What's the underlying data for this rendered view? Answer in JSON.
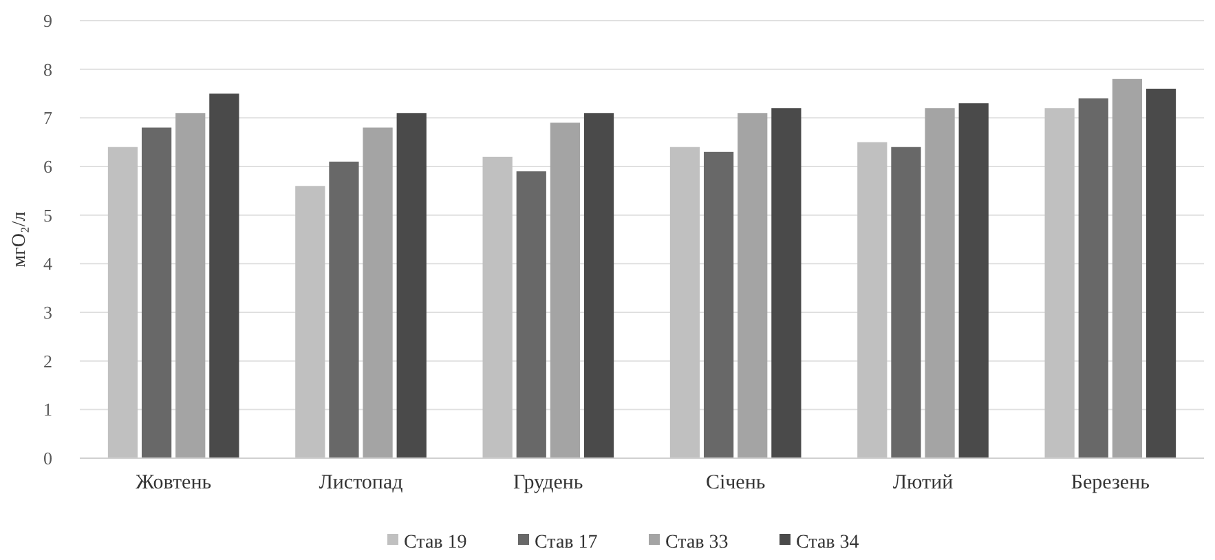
{
  "chart_data": {
    "type": "bar",
    "ylabel": "мгO₂/л",
    "categories": [
      "Жовтень",
      "Листопад",
      "Грудень",
      "Січень",
      "Лютий",
      "Березень"
    ],
    "series": [
      {
        "name": "Став 19",
        "color": "#c0c0c0",
        "values": [
          6.4,
          5.6,
          6.2,
          6.4,
          6.5,
          7.2
        ]
      },
      {
        "name": "Став 17",
        "color": "#686868",
        "values": [
          6.8,
          6.1,
          5.9,
          6.3,
          6.4,
          7.4
        ]
      },
      {
        "name": "Став 33",
        "color": "#a4a4a4",
        "values": [
          7.1,
          6.8,
          6.9,
          7.1,
          7.2,
          7.8
        ]
      },
      {
        "name": "Став 34",
        "color": "#4a4a4a",
        "values": [
          7.5,
          7.1,
          7.1,
          7.2,
          7.3,
          7.6
        ]
      }
    ],
    "ylim": [
      0,
      9
    ],
    "yticks": [
      0,
      1,
      2,
      3,
      4,
      5,
      6,
      7,
      8,
      9
    ],
    "grid": "y",
    "legend": "bottom"
  }
}
